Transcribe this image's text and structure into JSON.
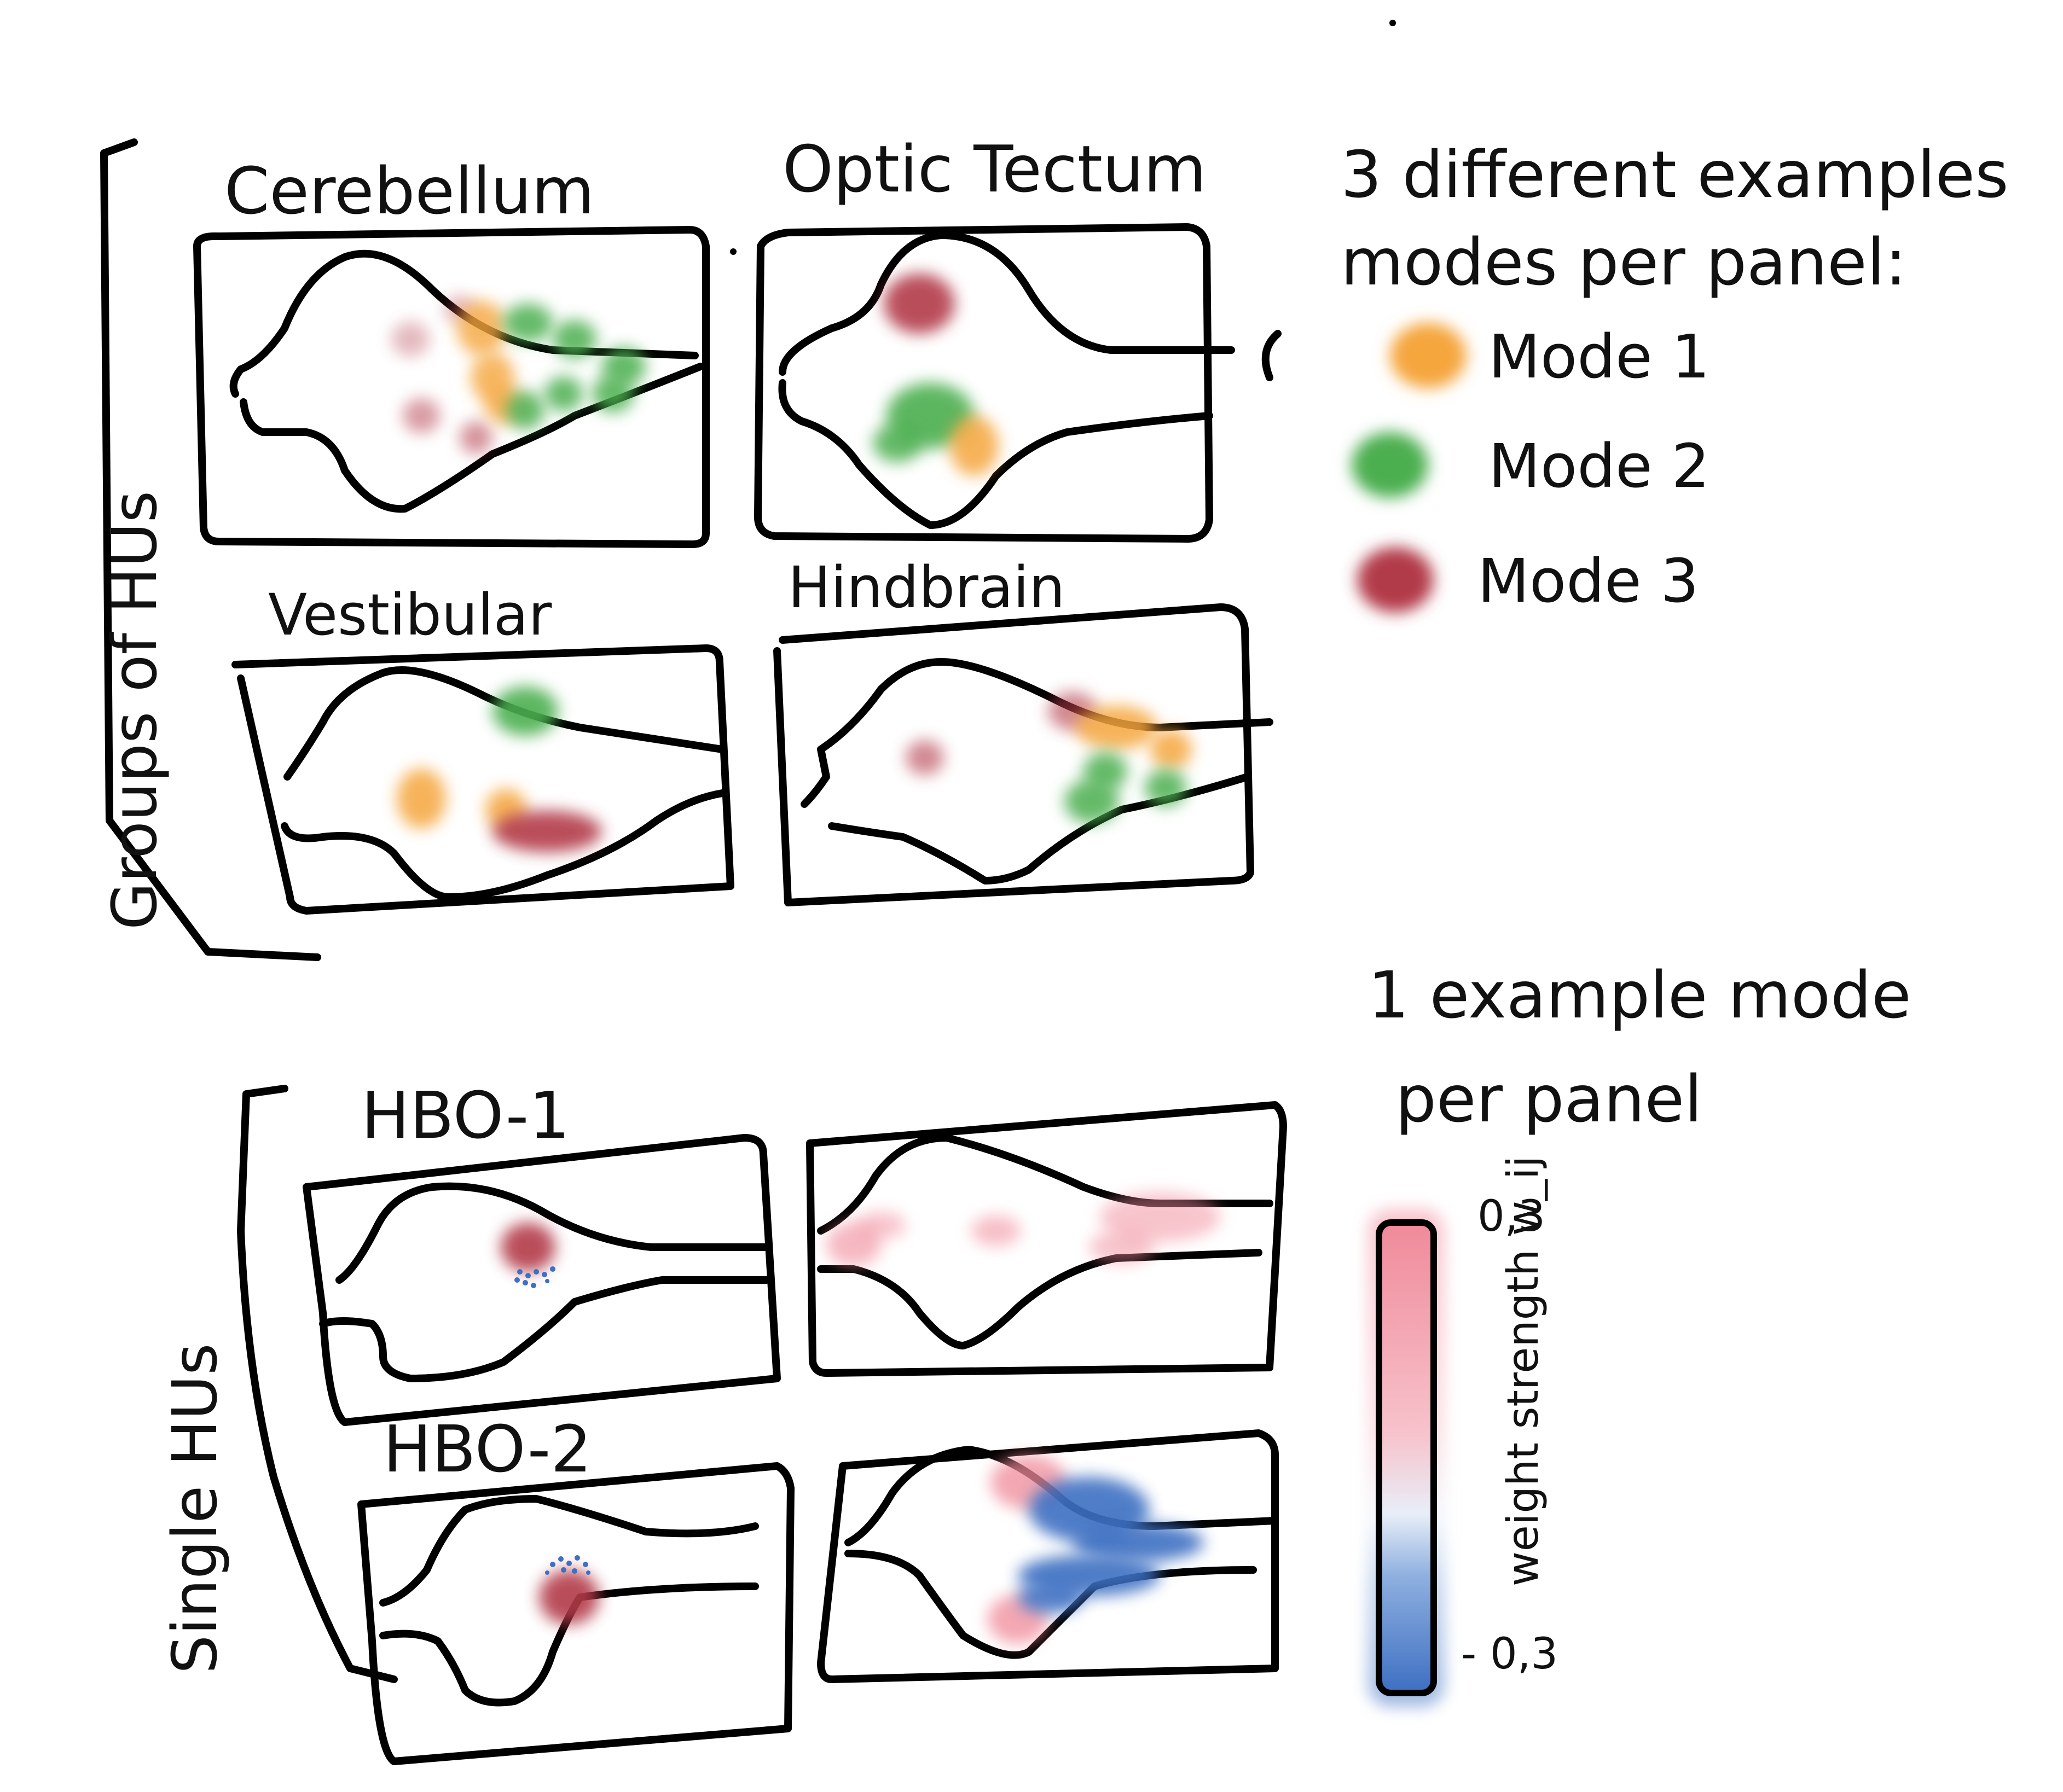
{
  "colors": {
    "mode1": "#F5A63D",
    "mode2": "#4CAF50",
    "mode3": "#B23A48",
    "weight_pos": "#F08A9A",
    "weight_neg": "#3D6FC2"
  },
  "groups_section": {
    "side_label": "Groups of HUs",
    "note": "3 different examples modes per panel:",
    "legend": [
      {
        "label": "Mode 1",
        "color_key": "mode1"
      },
      {
        "label": "Mode 2",
        "color_key": "mode2"
      },
      {
        "label": "Mode 3",
        "color_key": "mode3"
      }
    ],
    "panels": [
      {
        "title": "Cerebellum"
      },
      {
        "title": "Optic Tectum"
      },
      {
        "title": "Vestibular"
      },
      {
        "title": "Hindbrain"
      }
    ]
  },
  "single_section": {
    "side_label": "Single HUs",
    "note": "1 example mode per panel",
    "panels": [
      {
        "title": "HBO-1"
      },
      {
        "title": ""
      },
      {
        "title": "HBO-2"
      },
      {
        "title": ""
      }
    ],
    "colorbar": {
      "max_label": "0,3",
      "min_label": "- 0,3",
      "axis_label": "weight strength w_ij"
    }
  }
}
